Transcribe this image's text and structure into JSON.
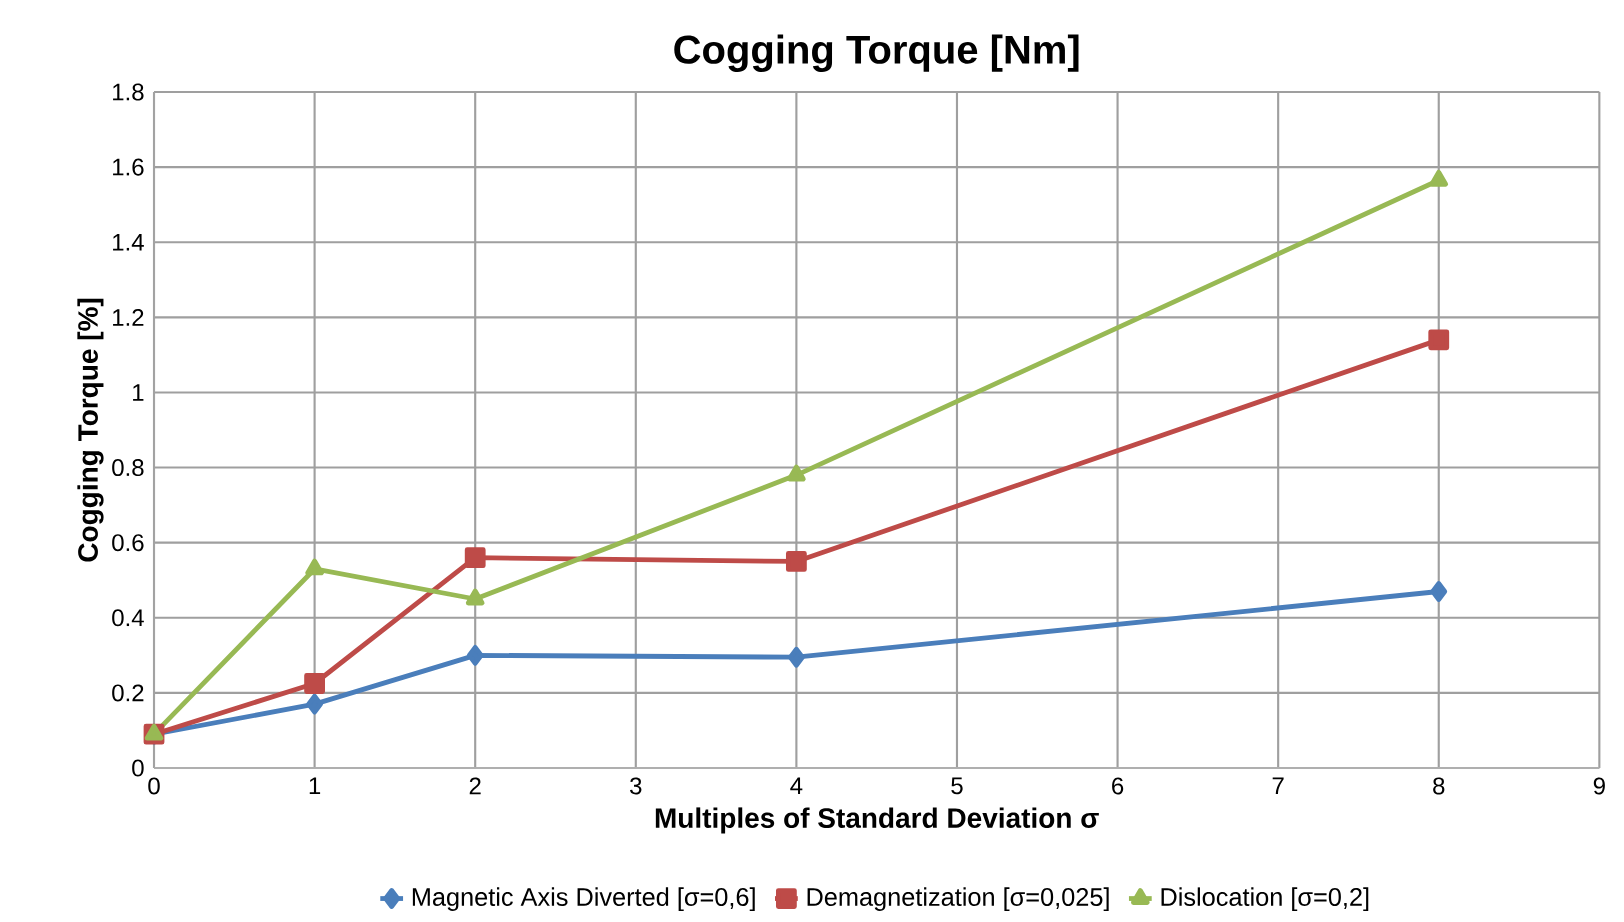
{
  "chart_data": {
    "type": "line",
    "title": "Cogging Torque [Nm]",
    "xlabel": "Multiples of Standard Deviation σ",
    "ylabel": "Cogging Torque [%]",
    "x": [
      0,
      1,
      2,
      4,
      8
    ],
    "series": [
      {
        "name": "Magnetic Axis Diverted  [σ=0,6]",
        "color": "#4a7ebb",
        "marker": "diamond",
        "values": [
          0.09,
          0.17,
          0.3,
          0.295,
          0.47
        ]
      },
      {
        "name": "Demagnetization [σ=0,025]",
        "color": "#be4b48",
        "marker": "square",
        "values": [
          0.09,
          0.225,
          0.56,
          0.55,
          1.14
        ]
      },
      {
        "name": "Dislocation [σ=0,2]",
        "color": "#98b954",
        "marker": "triangle",
        "values": [
          0.09,
          0.53,
          0.45,
          0.78,
          1.565
        ]
      }
    ],
    "xlim": [
      0,
      9
    ],
    "xticks": [
      0,
      1,
      2,
      3,
      4,
      5,
      6,
      7,
      8,
      9
    ],
    "ylim": [
      0,
      1.8
    ],
    "yticks": [
      0,
      0.2,
      0.4,
      0.6,
      0.8,
      1,
      1.2,
      1.4,
      1.6,
      1.8
    ],
    "grid": true,
    "legend": "bottom",
    "line_style": "solid"
  }
}
